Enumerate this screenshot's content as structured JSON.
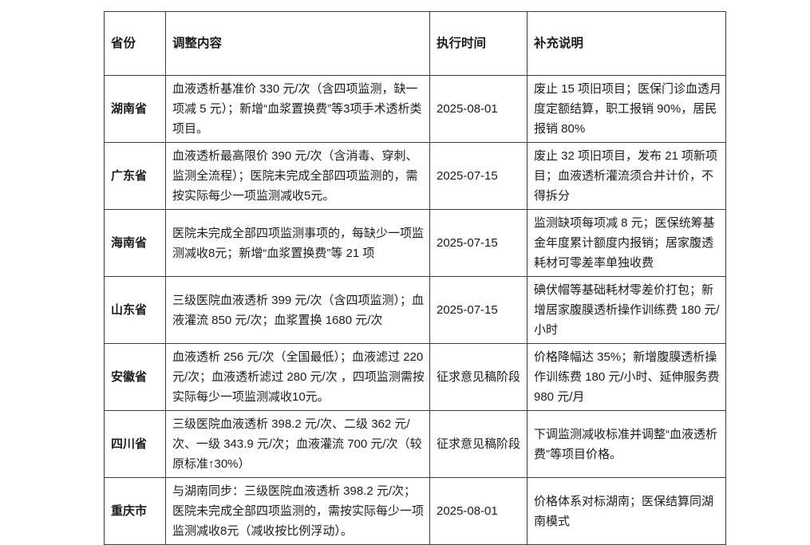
{
  "table": {
    "headers": [
      "省份",
      "调整内容",
      "执行时间",
      "补充说明"
    ],
    "rows": [
      {
        "province": "湖南省",
        "content": "血液透析基准价 330 元/次（含四项监测，缺一项减 5 元）；新增“血浆置换费”等3项手术透析类项目。",
        "time": "2025-08-01",
        "note": "废止 15 项旧项目；医保门诊血透月度定额结算，职工报销 90%，居民报销 80%"
      },
      {
        "province": "广东省",
        "content": "血液透析最高限价 390 元/次（含消毒、穿刺、监测全流程）；医院未完成全部四项监测的，需按实际每少一项监测减收5元。",
        "time": "2025-07-15",
        "note": "废止 32 项旧项目，发布 21 项新项目；血液透析灌流须合并计价，不得拆分"
      },
      {
        "province": "海南省",
        "content": "医院未完成全部四项监测事项的，每缺少一项监测减收8元；新增“血浆置换费”等 21 项",
        "time": "2025-07-15",
        "note": "监测缺项每项减 8 元；医保统筹基金年度累计额度内报销；居家腹透耗材可零差率单独收费"
      },
      {
        "province": "山东省",
        "content": "三级医院血液透析 399 元/次（含四项监测）；血液灌流 850 元/次；血浆置换 1680 元/次",
        "time": "2025-07-15",
        "note": "碘伏帽等基础耗材零差价打包；新增居家腹膜透析操作训练费 180 元/小时"
      },
      {
        "province": "安徽省",
        "content": "血液透析 256 元/次（全国最低）；血液滤过 220 元/次；血液透析滤过 280 元/次 ，四项监测需按实际每少一项监测减收10元。",
        "time": "征求意见稿阶段",
        "note": "价格降幅达 35%；新增腹膜透析操作训练费 180 元/小时、延伸服务费 980 元/月"
      },
      {
        "province": "四川省",
        "content": "三级医院血液透析 398.2 元/次、二级 362 元/次、一级 343.9 元/次；血液灌流 700 元/次（较原标准↑30%）",
        "time": "征求意见稿阶段",
        "note": "下调监测减收标准并调整“血液透析费”等项目价格。"
      },
      {
        "province": "重庆市",
        "content": "与湖南同步：三级医院血液透析 398.2 元/次；医院未完成全部四项监测的，需按实际每少一项监测减收8元（减收按比例浮动）。",
        "time": "2025-08-01",
        "note": "价格体系对标湖南；医保结算同湖南模式"
      }
    ]
  }
}
